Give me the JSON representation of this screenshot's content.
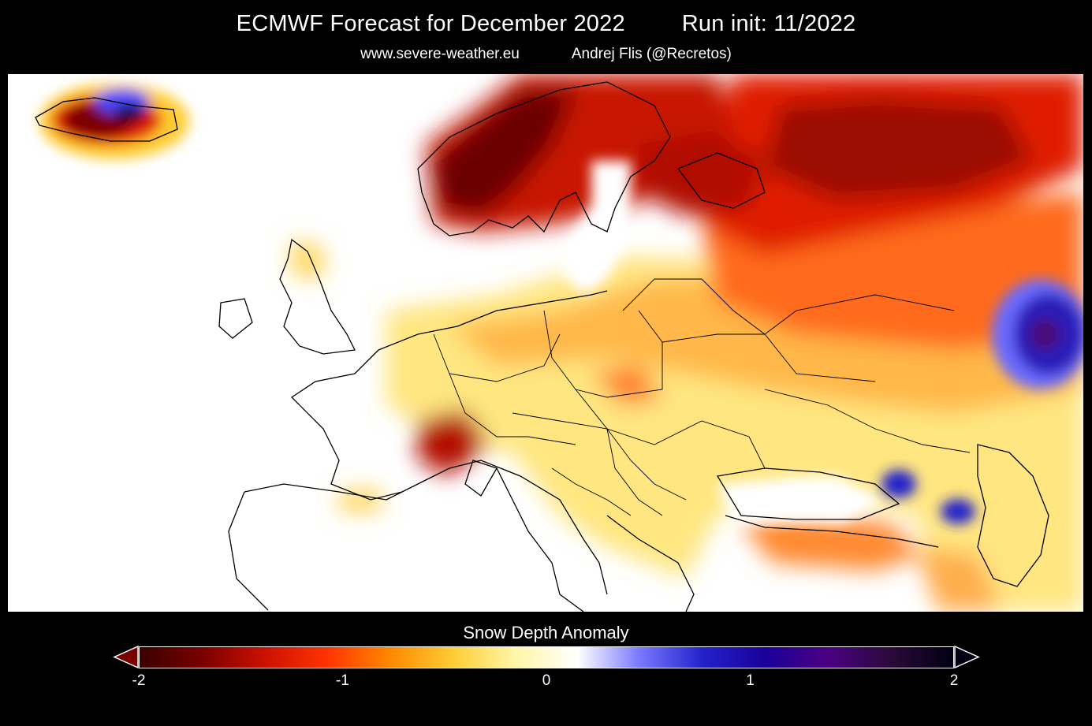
{
  "header": {
    "title": "ECMWF Forecast for December 2022",
    "run_init": "Run init: 11/2022",
    "website": "www.severe-weather.eu",
    "author": "Andrej Flis (@Recretos)"
  },
  "map": {
    "variable": "Snow Depth Anomaly",
    "region": "Europe"
  },
  "legend": {
    "title": "Snow Depth Anomaly",
    "ticks": [
      "-2",
      "-1",
      "0",
      "1",
      "2"
    ],
    "min": -2,
    "max": 2,
    "colors": [
      "#3a0000",
      "#7a0000",
      "#cc1100",
      "#ff3300",
      "#ff8800",
      "#ffcc33",
      "#fff6a8",
      "#ffffff",
      "#7777ff",
      "#2222cc",
      "#1a0099",
      "#4b0082",
      "#2a0a3a",
      "#000011"
    ]
  }
}
